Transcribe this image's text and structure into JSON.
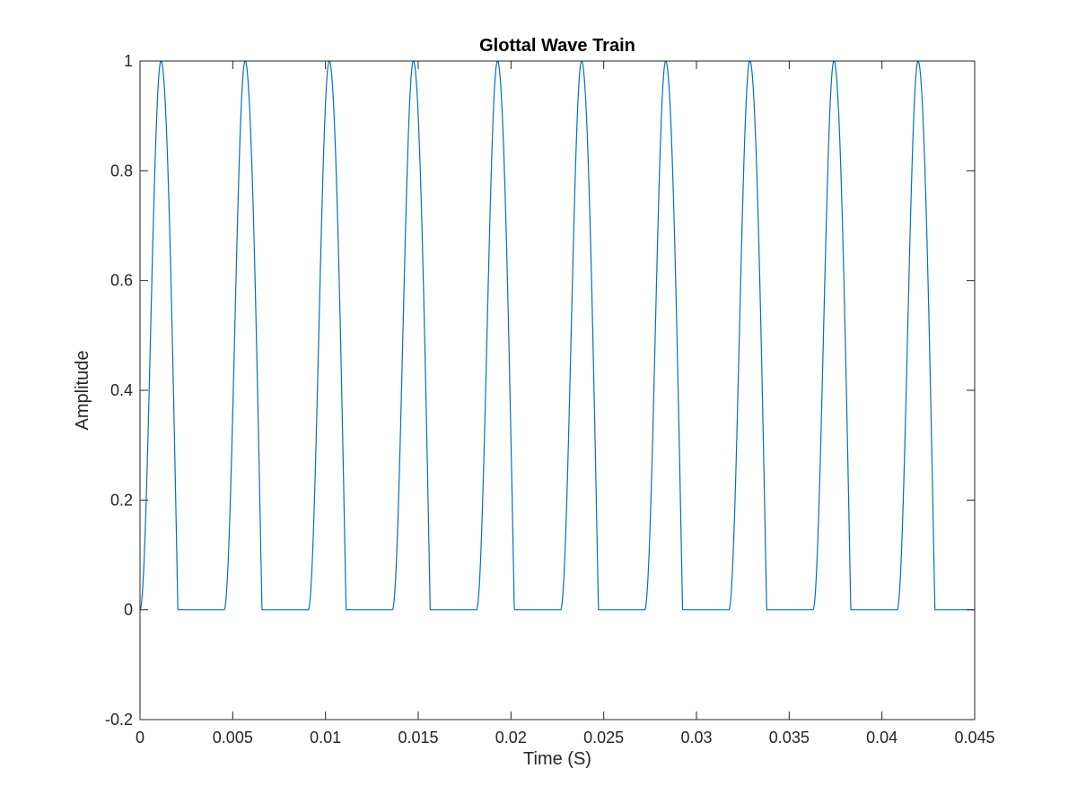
{
  "chart_data": {
    "type": "line",
    "title": "Glottal Wave Train",
    "xlabel": "Time (S)",
    "ylabel": "Amplitude",
    "xlim": [
      0,
      0.045
    ],
    "ylim": [
      -0.2,
      1
    ],
    "xticks": [
      0,
      0.005,
      0.01,
      0.015,
      0.02,
      0.025,
      0.03,
      0.035,
      0.04,
      0.045
    ],
    "xtick_labels": [
      "0",
      "0.005",
      "0.01",
      "0.015",
      "0.02",
      "0.025",
      "0.03",
      "0.035",
      "0.04",
      "0.045"
    ],
    "yticks": [
      -0.2,
      0,
      0.2,
      0.4,
      0.6,
      0.8,
      1
    ],
    "ytick_labels": [
      "-0.2",
      "0",
      "0.2",
      "0.4",
      "0.6",
      "0.8",
      "1"
    ],
    "grid": false,
    "box": true,
    "series": [
      {
        "color": "#0072BD",
        "pulse": {
          "period": 0.004535,
          "rise_duration": 0.001134,
          "fall_duration": 0.000907,
          "peak": 1
        }
      }
    ]
  }
}
